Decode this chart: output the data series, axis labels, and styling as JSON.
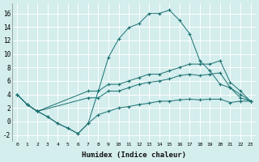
{
  "xlabel": "Humidex (Indice chaleur)",
  "background_color": "#d4eded",
  "grid_color": "#ffffff",
  "line_color": "#1a7070",
  "xlim": [
    -0.5,
    23.5
  ],
  "ylim": [
    -3.0,
    17.5
  ],
  "xticks": [
    0,
    1,
    2,
    3,
    4,
    5,
    6,
    7,
    8,
    9,
    10,
    11,
    12,
    13,
    14,
    15,
    16,
    17,
    18,
    19,
    20,
    21,
    22,
    23
  ],
  "yticks": [
    -2,
    0,
    2,
    4,
    6,
    8,
    10,
    12,
    14,
    16
  ],
  "curves": [
    {
      "x": [
        1,
        2,
        3,
        4,
        5,
        6,
        7,
        8,
        9,
        10,
        11,
        12,
        13,
        14,
        15,
        16,
        17,
        18,
        19,
        20,
        21,
        22,
        23
      ],
      "y": [
        2.5,
        1.5,
        0.7,
        -0.3,
        -1.0,
        -1.8,
        -0.3,
        4.5,
        9.5,
        12.2,
        13.9,
        14.5,
        16.0,
        16.0,
        16.5,
        15.0,
        13.0,
        9.0,
        7.5,
        5.5,
        5.0,
        3.5,
        3.0
      ]
    },
    {
      "x": [
        0,
        1,
        2,
        7,
        8,
        9,
        10,
        11,
        12,
        13,
        14,
        15,
        16,
        17,
        18,
        19,
        20,
        21,
        22,
        23
      ],
      "y": [
        4.0,
        2.5,
        1.5,
        4.5,
        4.5,
        5.5,
        5.5,
        6.0,
        6.5,
        7.0,
        7.0,
        7.5,
        8.0,
        8.5,
        8.5,
        8.5,
        9.0,
        5.8,
        4.5,
        3.0
      ]
    },
    {
      "x": [
        0,
        1,
        2,
        7,
        8,
        9,
        10,
        11,
        12,
        13,
        14,
        15,
        16,
        17,
        18,
        19,
        20,
        21,
        22,
        23
      ],
      "y": [
        4.0,
        2.5,
        1.5,
        3.5,
        3.5,
        4.5,
        4.5,
        5.0,
        5.5,
        5.8,
        6.0,
        6.3,
        6.8,
        7.0,
        6.8,
        7.0,
        7.2,
        5.0,
        4.0,
        3.0
      ]
    },
    {
      "x": [
        0,
        1,
        2,
        3,
        4,
        5,
        6,
        7,
        8,
        9,
        10,
        11,
        12,
        13,
        14,
        15,
        16,
        17,
        18,
        19,
        20,
        21,
        22,
        23
      ],
      "y": [
        4.0,
        2.5,
        1.5,
        0.7,
        -0.3,
        -1.0,
        -1.8,
        -0.3,
        1.0,
        1.5,
        2.0,
        2.2,
        2.5,
        2.7,
        3.0,
        3.0,
        3.2,
        3.3,
        3.2,
        3.3,
        3.3,
        2.8,
        3.0,
        3.0
      ]
    }
  ]
}
